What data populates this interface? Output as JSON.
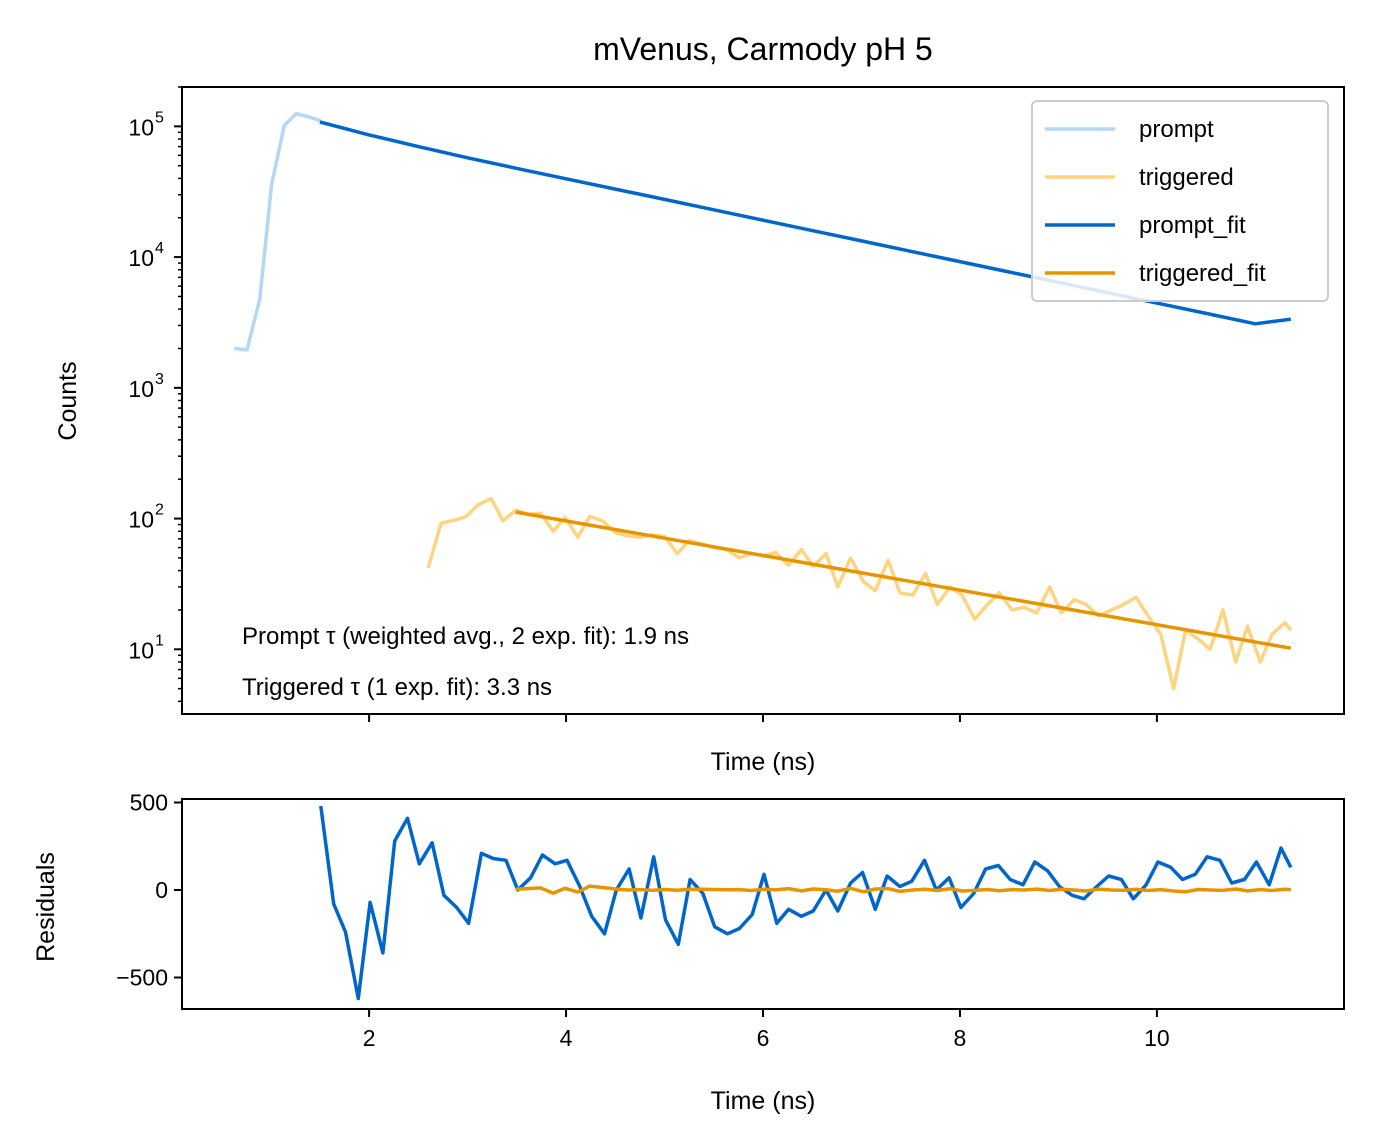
{
  "chart_data": [
    {
      "type": "line",
      "title": "mVenus, Carmody pH 5",
      "xlabel": "Time (ns)",
      "ylabel": "Counts",
      "yscale": "log",
      "xlim": [
        0.1,
        11.9
      ],
      "ylim": [
        3.2,
        200000
      ],
      "yticks": [
        {
          "value": 10,
          "base": "10",
          "exp": "1"
        },
        {
          "value": 100,
          "base": "10",
          "exp": "2"
        },
        {
          "value": 1000,
          "base": "10",
          "exp": "3"
        },
        {
          "value": 10000,
          "base": "10",
          "exp": "4"
        },
        {
          "value": 100000,
          "base": "10",
          "exp": "5"
        }
      ],
      "xtick_values": [
        2,
        4,
        6,
        8,
        10
      ],
      "xtick_labels_shown": false,
      "legend_position": "top-right",
      "annotations": [
        "Prompt τ (weighted avg., 2 exp. fit): 1.9 ns",
        "Triggered τ (1 exp. fit): 3.3 ns"
      ],
      "series": [
        {
          "name": "prompt",
          "color": "#b3d7f5",
          "x": [
            0.63,
            0.76,
            0.89,
            1.01,
            1.14,
            1.26,
            1.39,
            1.51
          ],
          "y": [
            2000,
            1950,
            4800,
            36000,
            102000,
            125000,
            118000,
            110000
          ]
        },
        {
          "name": "triggered",
          "color": "#ffd480",
          "x": [
            2.6,
            2.73,
            2.86,
            2.98,
            3.11,
            3.24,
            3.36,
            3.49,
            3.61,
            3.74,
            3.87,
            3.99,
            4.12,
            4.24,
            4.37,
            4.5,
            4.62,
            4.75,
            4.87,
            5.0,
            5.13,
            5.25,
            5.38,
            5.5,
            5.63,
            5.76,
            5.88,
            6.01,
            6.13,
            6.26,
            6.39,
            6.51,
            6.64,
            6.76,
            6.89,
            7.02,
            7.14,
            7.27,
            7.39,
            7.52,
            7.65,
            7.77,
            7.9,
            8.02,
            8.15,
            8.28,
            8.4,
            8.53,
            8.65,
            8.78,
            8.91,
            9.03,
            9.16,
            9.28,
            9.41,
            9.54,
            9.66,
            9.79,
            9.91,
            10.04,
            10.17,
            10.29,
            10.42,
            10.54,
            10.67,
            10.8,
            10.92,
            11.05,
            11.17,
            11.3,
            11.36
          ],
          "y": [
            42,
            92,
            97,
            103,
            128,
            142,
            96,
            116,
            108,
            110,
            80,
            102,
            72,
            104,
            96,
            78,
            74,
            72,
            75,
            73,
            54,
            68,
            64,
            60,
            58,
            50,
            54,
            52,
            55,
            44,
            58,
            43,
            54,
            30,
            50,
            33,
            28,
            48,
            27,
            26,
            38,
            22,
            30,
            26,
            17,
            22,
            27,
            20,
            21,
            19,
            30,
            19,
            24,
            22,
            18,
            20,
            22,
            25,
            18,
            13,
            5,
            14,
            12,
            10,
            20,
            8,
            15,
            8,
            13,
            16,
            14
          ]
        },
        {
          "name": "prompt_fit",
          "color": "#0066cc",
          "x": [
            1.5,
            2.0,
            2.5,
            3.0,
            3.5,
            4.0,
            4.5,
            5.0,
            5.5,
            6.0,
            6.5,
            7.0,
            7.5,
            8.0,
            8.5,
            9.0,
            9.5,
            10.0,
            10.5,
            11.0,
            11.36
          ],
          "y": [
            108000,
            86000,
            70000,
            57500,
            47700,
            39700,
            33100,
            27600,
            23000,
            19150,
            15950,
            13300,
            11080,
            9230,
            7690,
            6410,
            5340,
            4450,
            3710,
            3090,
            3350
          ]
        },
        {
          "name": "triggered_fit",
          "color": "#e69500",
          "x": [
            3.49,
            11.36
          ],
          "y": [
            112,
            10.2
          ]
        }
      ]
    },
    {
      "type": "line",
      "xlabel": "Time (ns)",
      "ylabel": "Residuals",
      "xlim": [
        0.1,
        11.9
      ],
      "ylim": [
        -680,
        520
      ],
      "yticks": [
        {
          "value": 500,
          "label": "500"
        },
        {
          "value": 0,
          "label": "0"
        },
        {
          "value": -500,
          "label": "−500"
        }
      ],
      "xticks": [
        {
          "value": 2,
          "label": "2"
        },
        {
          "value": 4,
          "label": "4"
        },
        {
          "value": 6,
          "label": "6"
        },
        {
          "value": 8,
          "label": "8"
        },
        {
          "value": 10,
          "label": "10"
        }
      ],
      "series": [
        {
          "color": "#0066cc",
          "x": [
            1.51,
            1.64,
            1.76,
            1.89,
            2.01,
            2.14,
            2.26,
            2.39,
            2.51,
            2.64,
            2.76,
            2.89,
            3.01,
            3.14,
            3.26,
            3.39,
            3.51,
            3.64,
            3.76,
            3.89,
            4.01,
            4.14,
            4.26,
            4.39,
            4.51,
            4.64,
            4.76,
            4.89,
            5.01,
            5.14,
            5.26,
            5.39,
            5.51,
            5.64,
            5.76,
            5.89,
            6.01,
            6.14,
            6.26,
            6.39,
            6.51,
            6.64,
            6.76,
            6.89,
            7.01,
            7.14,
            7.26,
            7.39,
            7.51,
            7.64,
            7.76,
            7.89,
            8.01,
            8.14,
            8.26,
            8.39,
            8.51,
            8.64,
            8.76,
            8.89,
            9.01,
            9.14,
            9.26,
            9.39,
            9.51,
            9.64,
            9.76,
            9.89,
            10.01,
            10.14,
            10.26,
            10.39,
            10.51,
            10.64,
            10.76,
            10.89,
            11.01,
            11.14,
            11.26,
            11.36
          ],
          "y": [
            480,
            -80,
            -240,
            -620,
            -70,
            -360,
            280,
            410,
            150,
            270,
            -30,
            -100,
            -190,
            210,
            180,
            170,
            0,
            70,
            200,
            150,
            170,
            20,
            -150,
            -250,
            0,
            120,
            -160,
            190,
            -170,
            -310,
            60,
            -20,
            -210,
            -250,
            -220,
            -140,
            90,
            -190,
            -110,
            -150,
            -120,
            0,
            -120,
            40,
            100,
            -110,
            80,
            20,
            50,
            170,
            0,
            70,
            -100,
            -20,
            120,
            140,
            60,
            30,
            160,
            110,
            20,
            -30,
            -50,
            20,
            80,
            60,
            -50,
            30,
            160,
            130,
            60,
            90,
            190,
            170,
            40,
            60,
            160,
            30,
            240,
            130
          ]
        },
        {
          "color": "#e69500",
          "x": [
            3.49,
            3.61,
            3.74,
            3.87,
            3.99,
            4.12,
            4.24,
            4.37,
            4.5,
            4.62,
            4.75,
            4.87,
            5.0,
            5.13,
            5.25,
            5.38,
            5.5,
            5.63,
            5.76,
            5.88,
            6.01,
            6.13,
            6.26,
            6.39,
            6.51,
            6.64,
            6.76,
            6.89,
            7.02,
            7.14,
            7.27,
            7.39,
            7.52,
            7.65,
            7.77,
            7.9,
            8.02,
            8.15,
            8.28,
            8.4,
            8.53,
            8.65,
            8.78,
            8.91,
            9.03,
            9.16,
            9.28,
            9.41,
            9.54,
            9.66,
            9.79,
            9.91,
            10.04,
            10.17,
            10.29,
            10.42,
            10.54,
            10.67,
            10.8,
            10.92,
            11.05,
            11.17,
            11.3,
            11.36
          ],
          "y": [
            5,
            8,
            12,
            -18,
            10,
            -12,
            22,
            14,
            6,
            0,
            2,
            -2,
            3,
            -1,
            4,
            4,
            3,
            1,
            2,
            -3,
            4,
            1,
            8,
            -5,
            6,
            1,
            -7,
            10,
            -10,
            6,
            8,
            -8,
            0,
            4,
            -3,
            8,
            -6,
            -2,
            3,
            -4,
            2,
            0,
            5,
            -3,
            4,
            0,
            -6,
            5,
            0,
            -2,
            4,
            -3,
            2,
            -6,
            -10,
            3,
            0,
            -2,
            6,
            -5,
            2,
            -3,
            4,
            2
          ]
        }
      ]
    }
  ]
}
